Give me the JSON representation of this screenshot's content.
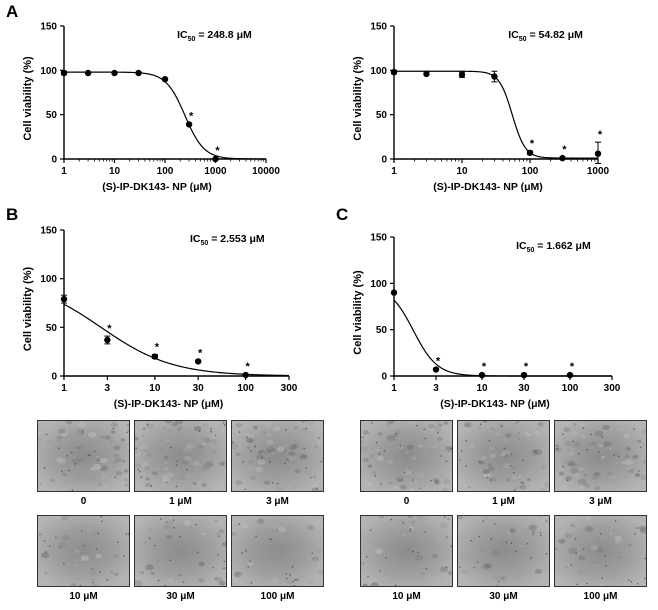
{
  "panel_labels": {
    "a": "A",
    "b": "B",
    "c": "C"
  },
  "micrograph_labels": {
    "left": [
      "0",
      "1 μM",
      "3 μM",
      "10 μM",
      "30 μM",
      "100 μM"
    ],
    "right": [
      "0",
      "1 μM",
      "3 μM",
      "10 μM",
      "30 μM",
      "100 μM"
    ]
  },
  "chart_data": [
    {
      "id": "A1",
      "type": "scatter",
      "xscale": "log",
      "xlim": [
        1,
        10000
      ],
      "ylim": [
        0,
        150
      ],
      "xticks": [
        1,
        10,
        100,
        1000,
        10000
      ],
      "xtick_labels": [
        "1",
        "10",
        "100",
        "1000",
        "10000"
      ],
      "yticks": [
        0,
        50,
        100,
        150
      ],
      "ytick_labels": [
        "0",
        "50",
        "100",
        "150"
      ],
      "xlabel": "(S)-IP-DK143- NP (μM)",
      "ylabel": "Cell viability (%)",
      "ic50_prefix": "IC",
      "ic50_sub": "50",
      "ic50_value": " = 248.8 μM",
      "fit": {
        "top": 98,
        "bottom": 0,
        "ic50": 248.8,
        "hill": 2.3
      },
      "points": [
        {
          "x": 1,
          "y": 97,
          "err": 2,
          "sig": ""
        },
        {
          "x": 3,
          "y": 97,
          "err": 1,
          "sig": ""
        },
        {
          "x": 10,
          "y": 97,
          "err": 1,
          "sig": ""
        },
        {
          "x": 30,
          "y": 97,
          "err": 1,
          "sig": ""
        },
        {
          "x": 100,
          "y": 90,
          "err": 1,
          "sig": ""
        },
        {
          "x": 300,
          "y": 39,
          "err": 1,
          "sig": "*"
        },
        {
          "x": 1000,
          "y": 0,
          "err": 1,
          "sig": "*"
        }
      ],
      "sig_mark": "*"
    },
    {
      "id": "A2",
      "type": "scatter",
      "xscale": "log",
      "xlim": [
        1,
        1000
      ],
      "ylim": [
        0,
        150
      ],
      "xticks": [
        1,
        10,
        100,
        1000
      ],
      "xtick_labels": [
        "1",
        "10",
        "100",
        "1000"
      ],
      "yticks": [
        0,
        50,
        100,
        150
      ],
      "ytick_labels": [
        "0",
        "50",
        "100",
        "150"
      ],
      "xlabel": "(S)-IP-DK143- NP (μM)",
      "ylabel": "Cell viability (%)",
      "ic50_prefix": "IC",
      "ic50_sub": "50",
      "ic50_value": " = 54.82 μM",
      "fit": {
        "top": 99,
        "bottom": 1,
        "ic50": 54.82,
        "hill": 4.5
      },
      "points": [
        {
          "x": 1,
          "y": 98,
          "err": 2,
          "sig": ""
        },
        {
          "x": 3,
          "y": 96,
          "err": 1,
          "sig": ""
        },
        {
          "x": 10,
          "y": 95,
          "err": 3,
          "sig": ""
        },
        {
          "x": 30,
          "y": 93,
          "err": 6,
          "sig": ""
        },
        {
          "x": 100,
          "y": 7,
          "err": 2,
          "sig": "*"
        },
        {
          "x": 300,
          "y": 1,
          "err": 1,
          "sig": "*"
        },
        {
          "x": 1000,
          "y": 6,
          "err": 13,
          "sig": "*"
        }
      ],
      "sig_mark": "*"
    },
    {
      "id": "B",
      "type": "scatter",
      "xscale": "log",
      "xlim": [
        1,
        300
      ],
      "ylim": [
        0,
        150
      ],
      "xticks": [
        1,
        3,
        10,
        30,
        100,
        300
      ],
      "xtick_labels": [
        "1",
        "3",
        "10",
        "30",
        "100",
        "300"
      ],
      "yticks": [
        0,
        50,
        100,
        150
      ],
      "ytick_labels": [
        "0",
        "50",
        "100",
        "150"
      ],
      "xlabel": "(S)-IP-DK143- NP (μM)",
      "ylabel": "Cell viability (%)",
      "ic50_prefix": "IC",
      "ic50_sub": "50",
      "ic50_value": " = 2.553 μM",
      "fit": {
        "top": 100,
        "bottom": 0,
        "ic50": 2.553,
        "hill": 1.1
      },
      "points": [
        {
          "x": 1,
          "y": 79,
          "err": 4,
          "sig": ""
        },
        {
          "x": 3,
          "y": 37,
          "err": 4,
          "sig": "*"
        },
        {
          "x": 10,
          "y": 20,
          "err": 2,
          "sig": "*"
        },
        {
          "x": 30,
          "y": 15,
          "err": 1,
          "sig": "*"
        },
        {
          "x": 100,
          "y": 1,
          "err": 1,
          "sig": "*"
        }
      ],
      "sig_mark": "*"
    },
    {
      "id": "C",
      "type": "scatter",
      "xscale": "log",
      "xlim": [
        1,
        300
      ],
      "ylim": [
        0,
        150
      ],
      "xticks": [
        1,
        3,
        10,
        30,
        100,
        300
      ],
      "xtick_labels": [
        "1",
        "3",
        "10",
        "30",
        "100",
        "300"
      ],
      "yticks": [
        0,
        50,
        100,
        150
      ],
      "ytick_labels": [
        "0",
        "50",
        "100",
        "150"
      ],
      "xlabel": "(S)-IP-DK143- NP (μM)",
      "ylabel": "Cell viability (%)",
      "ic50_prefix": "IC",
      "ic50_sub": "50",
      "ic50_value": " = 1.662 μM",
      "fit": {
        "top": 98,
        "bottom": 0,
        "ic50": 1.662,
        "hill": 3.2
      },
      "points": [
        {
          "x": 1,
          "y": 90,
          "err": 1,
          "sig": ""
        },
        {
          "x": 3,
          "y": 7,
          "err": 1,
          "sig": "*"
        },
        {
          "x": 10,
          "y": 1,
          "err": 1,
          "sig": "*"
        },
        {
          "x": 30,
          "y": 1,
          "err": 1,
          "sig": "*"
        },
        {
          "x": 100,
          "y": 1,
          "err": 1,
          "sig": "*"
        }
      ],
      "sig_mark": "*"
    }
  ]
}
